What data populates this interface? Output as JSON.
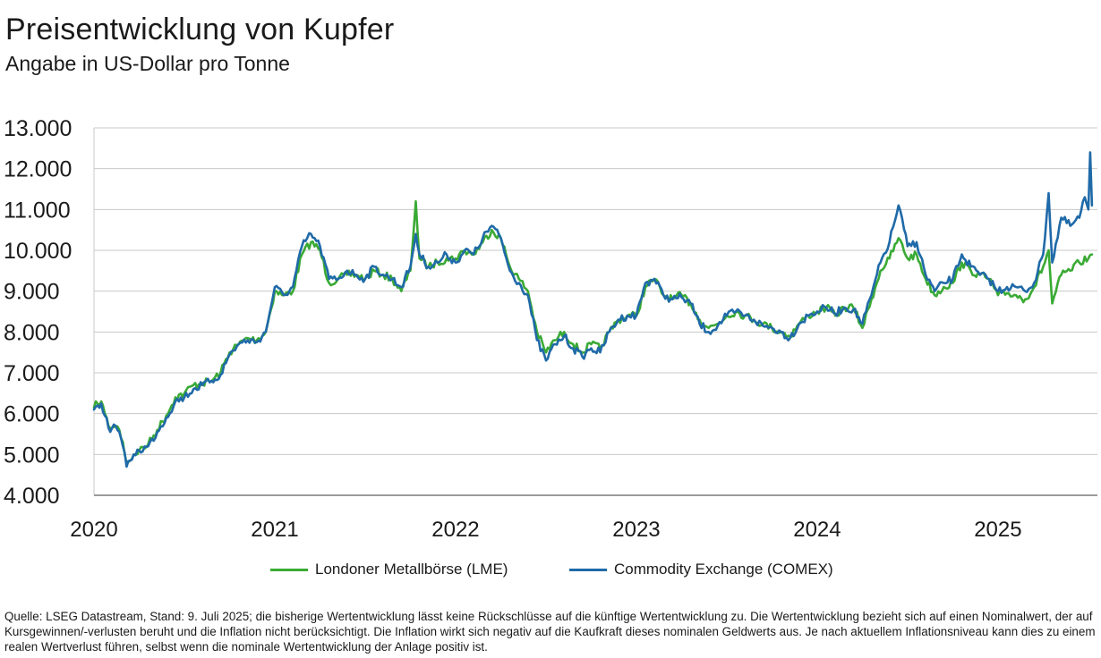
{
  "title": "Preisentwicklung von Kupfer",
  "subtitle": "Angabe in US-Dollar pro Tonne",
  "colors": {
    "lme": "#3aaa35",
    "comex": "#1f6aa8",
    "grid": "#c8c8c8",
    "axis": "#7a7a7a",
    "text": "#1a1a1a"
  },
  "legend": {
    "lme_label": "Londoner Metallbörse (LME)",
    "comex_label": "Commodity Exchange (COMEX)"
  },
  "source": "Quelle: LSEG Datastream, Stand: 9. Juli 2025; die bisherige Wertentwicklung lässt keine Rückschlüsse auf die künftige Wertentwicklung zu. Die Wertentwicklung bezieht sich auf einen Nominalwert, der auf Kursgewinnen/-verlusten beruht und die Inflation nicht berücksichtigt. Die Inflation wirkt sich negativ auf die Kaufkraft dieses nominalen Geldwerts aus. Je nach aktuellem Inflationsniveau kann dies zu einem realen Wertverlust führen, selbst wenn die nominale Wertentwicklung der Anlage positiv ist.",
  "chart_data": {
    "type": "line",
    "title": "Preisentwicklung von Kupfer",
    "subtitle": "Angabe in US-Dollar pro Tonne",
    "xlabel": "",
    "ylabel": "",
    "ylim": [
      4000,
      13000
    ],
    "xlim": [
      2020.0,
      2025.55
    ],
    "y_ticks": [
      4000,
      5000,
      6000,
      7000,
      8000,
      9000,
      10000,
      11000,
      12000,
      13000
    ],
    "y_tick_labels": [
      "4.000",
      "5.000",
      "6.000",
      "7.000",
      "8.000",
      "9.000",
      "10.000",
      "11.000",
      "12.000",
      "13.000"
    ],
    "x_ticks": [
      2020,
      2021,
      2022,
      2023,
      2024,
      2025
    ],
    "x_tick_labels": [
      "2020",
      "2021",
      "2022",
      "2023",
      "2024",
      "2025"
    ],
    "grid": "horizontal",
    "legend_position": "bottom",
    "series": [
      {
        "name": "Londoner Metallbörse (LME)",
        "color": "#3aaa35",
        "x": [
          2020.0,
          2020.02,
          2020.04,
          2020.06,
          2020.08,
          2020.1,
          2020.12,
          2020.14,
          2020.16,
          2020.18,
          2020.2,
          2020.22,
          2020.25,
          2020.3,
          2020.35,
          2020.4,
          2020.45,
          2020.5,
          2020.55,
          2020.6,
          2020.65,
          2020.7,
          2020.75,
          2020.8,
          2020.85,
          2020.9,
          2020.95,
          2021.0,
          2021.05,
          2021.1,
          2021.15,
          2021.2,
          2021.25,
          2021.3,
          2021.35,
          2021.4,
          2021.45,
          2021.5,
          2021.55,
          2021.6,
          2021.65,
          2021.7,
          2021.75,
          2021.78,
          2021.8,
          2021.85,
          2021.9,
          2021.95,
          2022.0,
          2022.05,
          2022.1,
          2022.15,
          2022.2,
          2022.25,
          2022.3,
          2022.35,
          2022.4,
          2022.45,
          2022.5,
          2022.55,
          2022.6,
          2022.65,
          2022.7,
          2022.75,
          2022.8,
          2022.85,
          2022.9,
          2022.95,
          2023.0,
          2023.05,
          2023.1,
          2023.15,
          2023.2,
          2023.25,
          2023.3,
          2023.35,
          2023.4,
          2023.45,
          2023.5,
          2023.55,
          2023.6,
          2023.65,
          2023.7,
          2023.75,
          2023.8,
          2023.85,
          2023.9,
          2023.95,
          2024.0,
          2024.05,
          2024.1,
          2024.15,
          2024.2,
          2024.25,
          2024.3,
          2024.35,
          2024.4,
          2024.45,
          2024.5,
          2024.55,
          2024.6,
          2024.65,
          2024.7,
          2024.75,
          2024.8,
          2024.85,
          2024.9,
          2024.95,
          2025.0,
          2025.05,
          2025.1,
          2025.15,
          2025.2,
          2025.25,
          2025.28,
          2025.3,
          2025.35,
          2025.4,
          2025.45,
          2025.5,
          2025.52
        ],
        "y": [
          6150,
          6250,
          6300,
          6000,
          5700,
          5650,
          5700,
          5600,
          5300,
          4800,
          4850,
          5000,
          5100,
          5250,
          5600,
          5950,
          6400,
          6500,
          6700,
          6750,
          6800,
          7000,
          7500,
          7700,
          7850,
          7800,
          8000,
          9000,
          8900,
          9000,
          9900,
          10200,
          10000,
          9200,
          9300,
          9400,
          9400,
          9300,
          9500,
          9400,
          9300,
          9000,
          9500,
          11200,
          9800,
          9600,
          9700,
          9800,
          9800,
          10000,
          9900,
          10200,
          10500,
          10300,
          9600,
          9300,
          9000,
          8000,
          7500,
          7800,
          8000,
          7700,
          7500,
          7700,
          7600,
          8000,
          8300,
          8400,
          8400,
          9100,
          9300,
          8900,
          8800,
          8900,
          8700,
          8300,
          8100,
          8200,
          8400,
          8500,
          8400,
          8300,
          8200,
          8100,
          8000,
          7900,
          8200,
          8400,
          8500,
          8600,
          8400,
          8600,
          8600,
          8100,
          8800,
          9500,
          9800,
          10300,
          9800,
          9900,
          9300,
          8900,
          9100,
          9200,
          9700,
          9500,
          9400,
          9300,
          8900,
          8950,
          8900,
          8800,
          9100,
          9600,
          10000,
          8700,
          9400,
          9500,
          9700,
          9800,
          9900
        ]
      },
      {
        "name": "Commodity Exchange (COMEX)",
        "color": "#1f6aa8",
        "x": [
          2020.0,
          2020.02,
          2020.04,
          2020.06,
          2020.08,
          2020.1,
          2020.12,
          2020.14,
          2020.16,
          2020.18,
          2020.2,
          2020.22,
          2020.25,
          2020.3,
          2020.35,
          2020.4,
          2020.45,
          2020.5,
          2020.55,
          2020.6,
          2020.65,
          2020.7,
          2020.75,
          2020.8,
          2020.85,
          2020.9,
          2020.95,
          2021.0,
          2021.05,
          2021.1,
          2021.15,
          2021.2,
          2021.25,
          2021.3,
          2021.35,
          2021.4,
          2021.45,
          2021.5,
          2021.55,
          2021.6,
          2021.65,
          2021.7,
          2021.75,
          2021.78,
          2021.8,
          2021.85,
          2021.9,
          2021.95,
          2022.0,
          2022.05,
          2022.1,
          2022.15,
          2022.2,
          2022.25,
          2022.3,
          2022.35,
          2022.4,
          2022.45,
          2022.5,
          2022.55,
          2022.6,
          2022.65,
          2022.7,
          2022.75,
          2022.8,
          2022.85,
          2022.9,
          2022.95,
          2023.0,
          2023.05,
          2023.1,
          2023.15,
          2023.2,
          2023.25,
          2023.3,
          2023.35,
          2023.4,
          2023.45,
          2023.5,
          2023.55,
          2023.6,
          2023.65,
          2023.7,
          2023.75,
          2023.8,
          2023.85,
          2023.9,
          2023.95,
          2024.0,
          2024.05,
          2024.1,
          2024.15,
          2024.2,
          2024.25,
          2024.3,
          2024.35,
          2024.4,
          2024.45,
          2024.5,
          2024.55,
          2024.6,
          2024.65,
          2024.7,
          2024.75,
          2024.8,
          2024.85,
          2024.9,
          2024.95,
          2025.0,
          2025.05,
          2025.1,
          2025.15,
          2025.2,
          2025.25,
          2025.28,
          2025.3,
          2025.35,
          2025.4,
          2025.45,
          2025.48,
          2025.5,
          2025.51,
          2025.52
        ],
        "y": [
          6100,
          6200,
          6250,
          5950,
          5650,
          5650,
          5700,
          5550,
          5200,
          4700,
          4850,
          5000,
          5100,
          5200,
          5550,
          5900,
          6300,
          6400,
          6600,
          6700,
          6800,
          6950,
          7450,
          7700,
          7800,
          7750,
          8000,
          9100,
          8900,
          9100,
          10100,
          10400,
          10100,
          9300,
          9300,
          9500,
          9400,
          9300,
          9600,
          9400,
          9300,
          9100,
          9600,
          10400,
          9900,
          9600,
          9700,
          9900,
          9700,
          10000,
          9900,
          10300,
          10600,
          10300,
          9500,
          9200,
          8900,
          7800,
          7300,
          7700,
          7900,
          7600,
          7400,
          7600,
          7500,
          8000,
          8300,
          8400,
          8400,
          9200,
          9300,
          8900,
          8800,
          8850,
          8700,
          8200,
          8000,
          8150,
          8400,
          8500,
          8400,
          8300,
          8150,
          8100,
          8000,
          7850,
          8200,
          8400,
          8500,
          8600,
          8450,
          8600,
          8550,
          8200,
          8900,
          9700,
          10200,
          11100,
          10100,
          10200,
          9400,
          9000,
          9200,
          9300,
          9900,
          9600,
          9400,
          9300,
          9000,
          9100,
          9100,
          9000,
          9200,
          9900,
          11400,
          9700,
          10800,
          10600,
          10800,
          11300,
          11000,
          12400,
          11100
        ]
      }
    ]
  }
}
